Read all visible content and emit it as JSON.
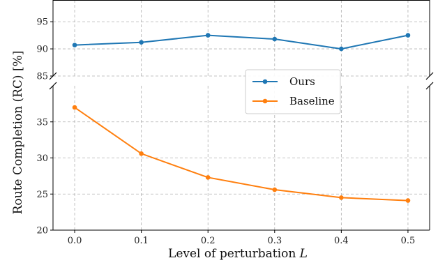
{
  "chart_data": {
    "type": "line",
    "xlabel": "Level of perturbation",
    "xlabel_var": "L",
    "ylabel": "Route Completion (RC) [%]",
    "x": [
      0.0,
      0.1,
      0.2,
      0.3,
      0.4,
      0.5
    ],
    "x_tick_labels": [
      "0.0",
      "0.1",
      "0.2",
      "0.3",
      "0.4",
      "0.5"
    ],
    "broken_axis": true,
    "top_panel": {
      "ylim": [
        85,
        99
      ],
      "y_ticks": [
        85,
        90,
        95
      ]
    },
    "bottom_panel": {
      "ylim": [
        20,
        40
      ],
      "y_ticks": [
        20,
        25,
        30,
        35
      ]
    },
    "grid": true,
    "legend_position": "center-right",
    "series": [
      {
        "name": "Ours",
        "color": "#1f77b4",
        "values": [
          90.7,
          91.2,
          92.5,
          91.8,
          90.0,
          92.5
        ]
      },
      {
        "name": "Baseline",
        "color": "#ff7f0e",
        "values": [
          37.0,
          30.6,
          27.3,
          25.6,
          24.5,
          24.1
        ]
      }
    ]
  }
}
